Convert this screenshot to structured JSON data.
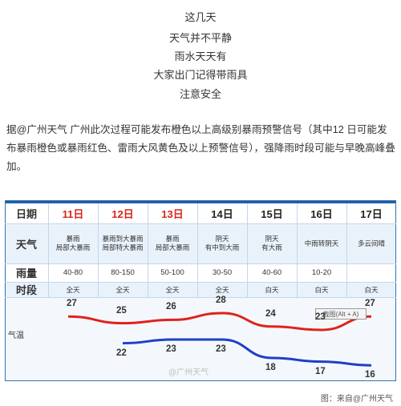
{
  "poem": [
    "这几天",
    "天气并不平静",
    "雨水天天有",
    "大家出门记得带雨具",
    "注意安全"
  ],
  "paragraph": "据@广州天气 广州此次过程可能发布橙色以上高级别暴雨预警信号（其中12 日可能发布暴雨橙色或暴雨红色、雷雨大风黄色及以上预警信号），强降雨时段可能与早晚高峰叠加。",
  "forecast": {
    "labels": {
      "date": "日期",
      "weather": "天气",
      "rain": "雨量",
      "period": "时段",
      "temp": "气温"
    },
    "days": [
      {
        "date": "11日",
        "weather1": "暴雨",
        "weather2": "局部大暴雨",
        "rain": "40-80",
        "period": "全天",
        "high": 27,
        "low": null,
        "highlight": true
      },
      {
        "date": "12日",
        "weather1": "暴雨到大暴雨",
        "weather2": "局部特大暴雨",
        "rain": "80-150",
        "period": "全天",
        "high": 25,
        "low": 22,
        "highlight": true
      },
      {
        "date": "13日",
        "weather1": "暴雨",
        "weather2": "局部大暴雨",
        "rain": "50-100",
        "period": "全天",
        "high": 26,
        "low": 23,
        "highlight": true
      },
      {
        "date": "14日",
        "weather1": "阴天",
        "weather2": "有中到大雨",
        "rain": "30-50",
        "period": "全天",
        "high": 28,
        "low": 23,
        "highlight": false
      },
      {
        "date": "15日",
        "weather1": "阴天",
        "weather2": "有大雨",
        "rain": "40-60",
        "period": "白天",
        "high": 24,
        "low": 18,
        "highlight": false
      },
      {
        "date": "16日",
        "weather1": "中雨转阴天",
        "weather2": "",
        "rain": "10-20",
        "period": "白天",
        "high": 23,
        "low": 17,
        "highlight": false
      },
      {
        "date": "17日",
        "weather1": "多云间晴",
        "weather2": "",
        "rain": "",
        "period": "白天",
        "high": 27,
        "low": 16,
        "highlight": false
      }
    ],
    "tooltip": "截图(Alt + A)",
    "watermark": "@广州天气",
    "colors": {
      "high_line": "#e0221b",
      "low_line": "#1f3fc9",
      "highlight_date": "#d9261c",
      "frame": "#2f74b5"
    }
  },
  "credit": "图：来自@广州天气"
}
